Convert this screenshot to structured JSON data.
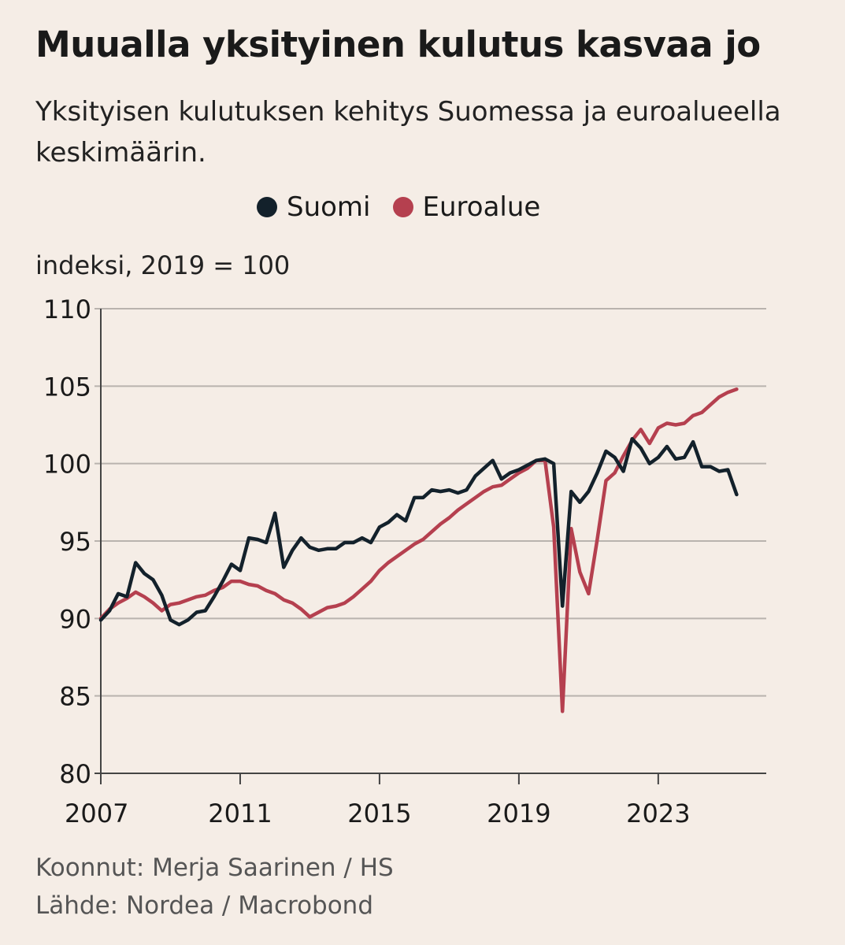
{
  "title": "Muualla yksityinen kulutus kasvaa jo",
  "subtitle": "Yksityisen kulutuksen kehitys Suomessa ja euroalueella keskimäärin.",
  "unit_label": "indeksi, 2019 = 100",
  "footer": {
    "compiled_by": "Koonnut: Merja Saarinen / HS",
    "source": "Lähde: Nordea / Macrobond"
  },
  "colors": {
    "suomi": "#13212b",
    "euroalue": "#b5404f",
    "grid": "#b9b3ae",
    "axis": "#444444"
  },
  "chart_data": {
    "type": "line",
    "title": "Muualla yksityinen kulutus kasvaa jo",
    "ylabel": "indeksi, 2019 = 100",
    "xlabel": "",
    "ylim": [
      80,
      110
    ],
    "xlim": [
      2007,
      2026.1
    ],
    "yticks": [
      80,
      85,
      90,
      95,
      100,
      105,
      110
    ],
    "xticks": [
      2007,
      2011,
      2015,
      2019,
      2023
    ],
    "ytick_labels": [
      "80",
      "85",
      "90",
      "95",
      "100",
      "105",
      "110"
    ],
    "xtick_labels": [
      "2007",
      "2011",
      "2015",
      "2019",
      "2023"
    ],
    "grid": "horizontal",
    "legend": "top-center",
    "series": [
      {
        "name": "Suomi",
        "color": "#13212b",
        "x": [
          2007.0,
          2007.25,
          2007.5,
          2007.75,
          2008.0,
          2008.25,
          2008.5,
          2008.75,
          2009.0,
          2009.25,
          2009.5,
          2009.75,
          2010.0,
          2010.25,
          2010.5,
          2010.75,
          2011.0,
          2011.25,
          2011.5,
          2011.75,
          2012.0,
          2012.25,
          2012.5,
          2012.75,
          2013.0,
          2013.25,
          2013.5,
          2013.75,
          2014.0,
          2014.25,
          2014.5,
          2014.75,
          2015.0,
          2015.25,
          2015.5,
          2015.75,
          2016.0,
          2016.25,
          2016.5,
          2016.75,
          2017.0,
          2017.25,
          2017.5,
          2017.75,
          2018.0,
          2018.25,
          2018.5,
          2018.75,
          2019.0,
          2019.25,
          2019.5,
          2019.75,
          2020.0,
          2020.25,
          2020.5,
          2020.75,
          2021.0,
          2021.25,
          2021.5,
          2021.75,
          2022.0,
          2022.25,
          2022.5,
          2022.75,
          2023.0,
          2023.25,
          2023.5,
          2023.75,
          2024.0,
          2024.25,
          2024.5,
          2024.75,
          2025.0,
          2025.25,
          2025.5,
          2025.75,
          2026.0
        ],
        "values": [
          89.9,
          90.5,
          91.6,
          91.4,
          93.6,
          92.9,
          92.5,
          91.5,
          89.9,
          89.6,
          89.9,
          90.4,
          90.5,
          91.4,
          92.4,
          93.5,
          93.1,
          95.2,
          95.1,
          94.9,
          96.8,
          93.3,
          94.4,
          95.2,
          94.6,
          94.4,
          94.5,
          94.5,
          94.9,
          94.9,
          95.2,
          94.9,
          95.9,
          96.2,
          96.7,
          96.3,
          97.8,
          97.8,
          98.3,
          98.2,
          98.3,
          98.1,
          98.3,
          99.2,
          99.7,
          100.2,
          99.0,
          99.4,
          99.6,
          99.9,
          100.2,
          100.3,
          100.0,
          90.8,
          98.2,
          97.5,
          98.2,
          99.4,
          100.8,
          100.4,
          99.5,
          101.6,
          101.0,
          100.0,
          100.4,
          101.1,
          100.3,
          100.4,
          101.4,
          99.8,
          99.8,
          99.5,
          99.6,
          98.0,
          null,
          null,
          null
        ]
      },
      {
        "name": "Euroalue",
        "color": "#b5404f",
        "x": [
          2007.0,
          2007.25,
          2007.5,
          2007.75,
          2008.0,
          2008.25,
          2008.5,
          2008.75,
          2009.0,
          2009.25,
          2009.5,
          2009.75,
          2010.0,
          2010.25,
          2010.5,
          2010.75,
          2011.0,
          2011.25,
          2011.5,
          2011.75,
          2012.0,
          2012.25,
          2012.5,
          2012.75,
          2013.0,
          2013.25,
          2013.5,
          2013.75,
          2014.0,
          2014.25,
          2014.5,
          2014.75,
          2015.0,
          2015.25,
          2015.5,
          2015.75,
          2016.0,
          2016.25,
          2016.5,
          2016.75,
          2017.0,
          2017.25,
          2017.5,
          2017.75,
          2018.0,
          2018.25,
          2018.5,
          2018.75,
          2019.0,
          2019.25,
          2019.5,
          2019.75,
          2020.0,
          2020.25,
          2020.5,
          2020.75,
          2021.0,
          2021.25,
          2021.5,
          2021.75,
          2022.0,
          2022.25,
          2022.5,
          2022.75,
          2023.0,
          2023.25,
          2023.5,
          2023.75,
          2024.0,
          2024.25,
          2024.5,
          2024.75,
          2025.0,
          2025.25,
          2025.5,
          2025.75,
          2026.0
        ],
        "values": [
          90.0,
          90.6,
          91.0,
          91.3,
          91.7,
          91.4,
          91.0,
          90.5,
          90.9,
          91.0,
          91.2,
          91.4,
          91.5,
          91.8,
          92.0,
          92.4,
          92.4,
          92.2,
          92.1,
          91.8,
          91.6,
          91.2,
          91.0,
          90.6,
          90.1,
          90.4,
          90.7,
          90.8,
          91.0,
          91.4,
          91.9,
          92.4,
          93.1,
          93.6,
          94.0,
          94.4,
          94.8,
          95.1,
          95.6,
          96.1,
          96.5,
          97.0,
          97.4,
          97.8,
          98.2,
          98.5,
          98.6,
          99.0,
          99.4,
          99.7,
          100.2,
          100.2,
          95.9,
          84.0,
          95.8,
          93.0,
          91.6,
          95.1,
          98.9,
          99.4,
          100.5,
          101.5,
          102.2,
          101.3,
          102.3,
          102.6,
          102.5,
          102.6,
          103.1,
          103.3,
          103.8,
          104.3,
          104.6,
          104.8,
          null,
          null,
          null
        ]
      }
    ]
  }
}
